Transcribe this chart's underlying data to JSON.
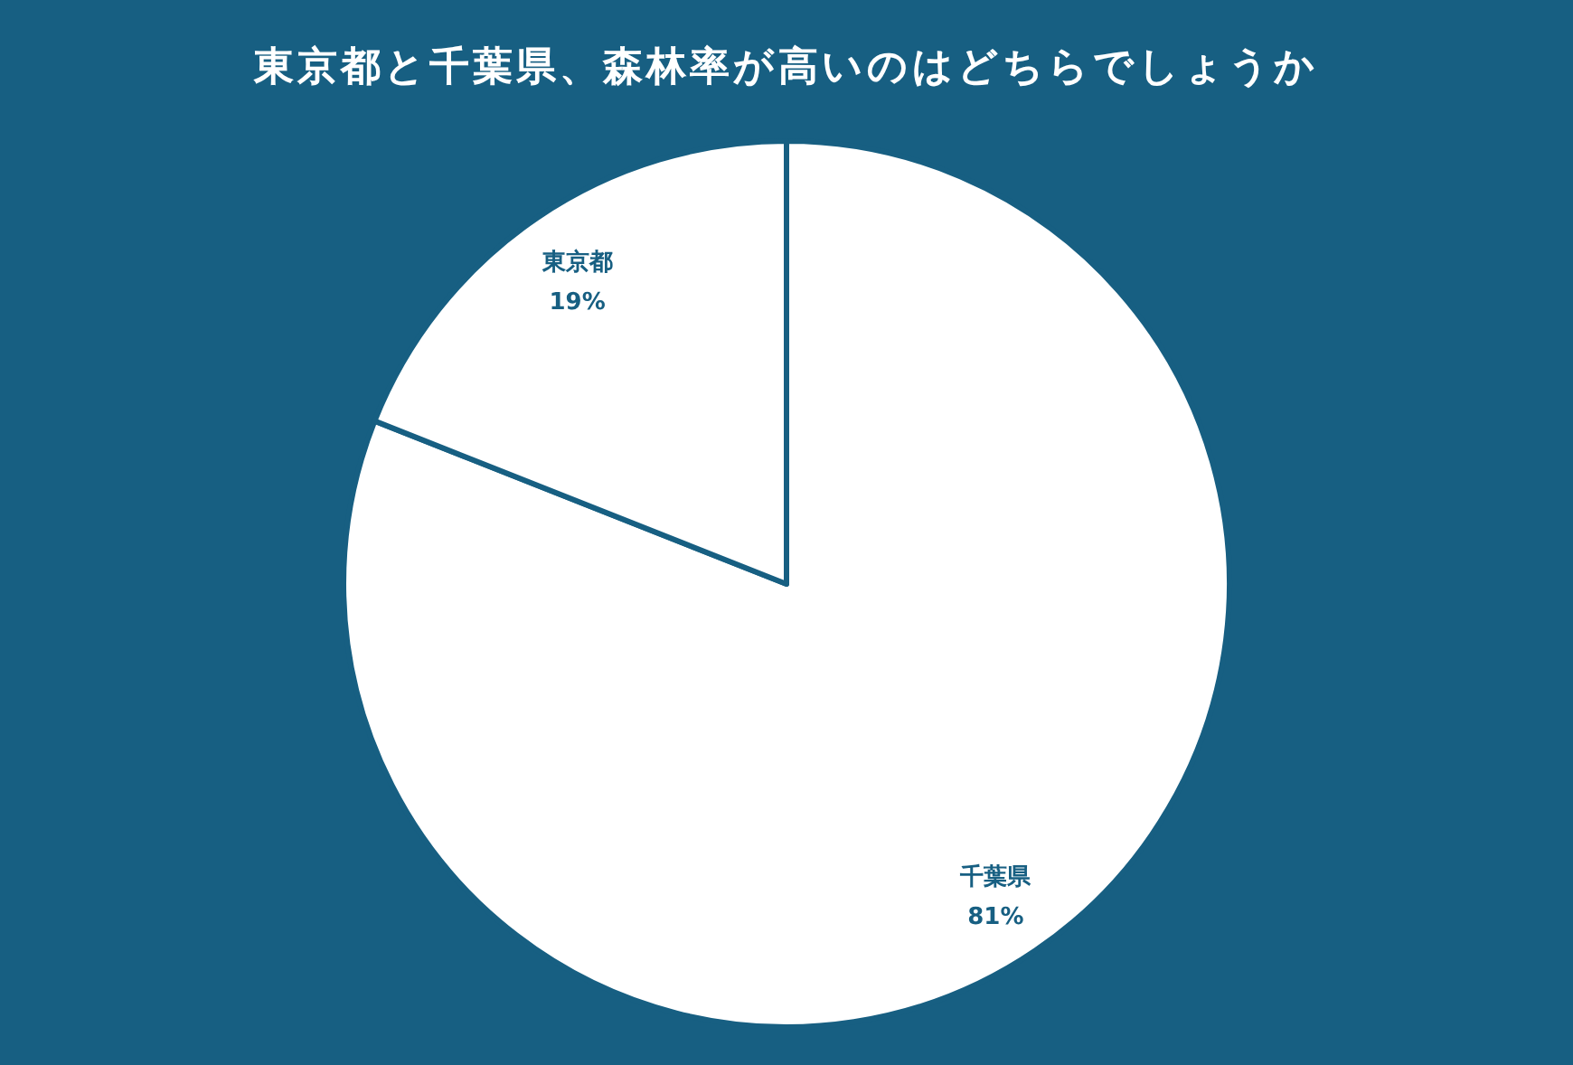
{
  "chart_data": {
    "type": "pie",
    "title": "東京都と千葉県、森林率が高いのはどちらでしょうか",
    "categories": [
      "千葉県",
      "東京都"
    ],
    "values": [
      81,
      19
    ],
    "colors": [
      "#ffffff",
      "#ffffff"
    ],
    "value_labels": [
      "81%",
      "19%"
    ]
  }
}
